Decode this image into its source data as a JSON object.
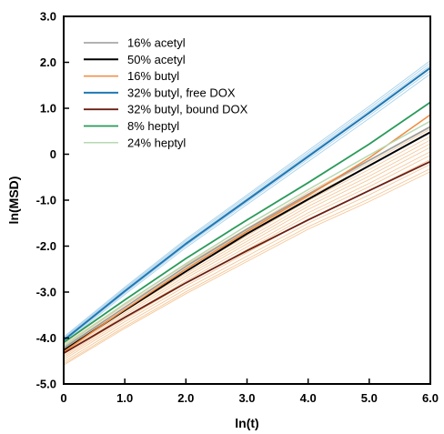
{
  "chart_data": {
    "type": "line",
    "xlabel": "ln(t)",
    "ylabel": "ln(MSD)",
    "xlim": [
      0,
      6
    ],
    "ylim": [
      -5,
      3
    ],
    "grid": false,
    "legend_position": "top-left",
    "x_ticks": [
      "0",
      "1.0",
      "2.0",
      "3.0",
      "4.0",
      "5.0",
      "6.0"
    ],
    "y_ticks": [
      "-5.0",
      "-4.0",
      "-3.0",
      "-2.0",
      "-1.0",
      "0",
      "1.0",
      "2.0",
      "3.0"
    ],
    "series": [
      {
        "name": "16% acetyl",
        "color": "#9a9a9a",
        "width": 1.5,
        "x": [
          0,
          1,
          2,
          3,
          4,
          5,
          6
        ],
        "y": [
          -4.22,
          -3.33,
          -2.44,
          -1.63,
          -0.87,
          -0.13,
          0.6
        ]
      },
      {
        "name": "50% acetyl",
        "color": "#000000",
        "width": 2,
        "x": [
          0,
          1,
          2,
          3,
          4,
          5,
          6
        ],
        "y": [
          -4.27,
          -3.4,
          -2.55,
          -1.73,
          -0.98,
          -0.25,
          0.48
        ]
      },
      {
        "name": "16% butyl",
        "color": "#f08a3c",
        "width": 1.5,
        "x": [
          0,
          1,
          2,
          3,
          4,
          5,
          6
        ],
        "y": [
          -4.3,
          -3.38,
          -2.5,
          -1.68,
          -0.9,
          -0.08,
          0.86
        ]
      },
      {
        "name": "32% butyl, free DOX",
        "color": "#1f77b4",
        "width": 2,
        "x": [
          0,
          1,
          2,
          3,
          4,
          5,
          6
        ],
        "y": [
          -4.05,
          -2.98,
          -1.95,
          -1.0,
          -0.05,
          0.9,
          1.88
        ]
      },
      {
        "name": "32% butyl, bound DOX",
        "color": "#6b1f12",
        "width": 1.8,
        "x": [
          0,
          1,
          2,
          3,
          4,
          5,
          6
        ],
        "y": [
          -4.33,
          -3.55,
          -2.8,
          -2.1,
          -1.43,
          -0.79,
          -0.16
        ]
      },
      {
        "name": "8% heptyl",
        "color": "#2a9a5a",
        "width": 1.8,
        "x": [
          0,
          1,
          2,
          3,
          4,
          5,
          6
        ],
        "y": [
          -4.1,
          -3.17,
          -2.27,
          -1.43,
          -0.62,
          0.22,
          1.13
        ]
      },
      {
        "name": "24% heptyl",
        "color": "#b6d9b0",
        "width": 1.5,
        "x": [
          0,
          1,
          2,
          3,
          4,
          5,
          6
        ],
        "y": [
          -4.18,
          -3.25,
          -2.38,
          -1.55,
          -0.77,
          -0.02,
          0.72
        ]
      }
    ],
    "bundles": [
      {
        "color": "#f5c89a",
        "width": 0.9,
        "offsets": [
          -0.35,
          -0.28,
          -0.2,
          -0.13,
          -0.07,
          0.0,
          0.06,
          0.12,
          0.18,
          0.25,
          0.3,
          -0.4,
          0.35
        ],
        "base": [
          -4.35,
          -3.5,
          -2.7,
          -1.95,
          -1.2,
          -0.55,
          0.15
        ]
      },
      {
        "color": "#a9d2ea",
        "width": 0.9,
        "offsets": [
          -0.05,
          0.04,
          0.08,
          -0.1,
          0.12
        ],
        "base": [
          -4.05,
          -2.98,
          -1.95,
          -1.0,
          -0.05,
          0.9,
          1.88
        ]
      },
      {
        "color": "#d3dcd3",
        "width": 0.9,
        "offsets": [
          -0.06,
          0.05
        ],
        "base": [
          -4.2,
          -3.3,
          -2.42,
          -1.6,
          -0.83,
          -0.08,
          0.66
        ]
      }
    ]
  }
}
